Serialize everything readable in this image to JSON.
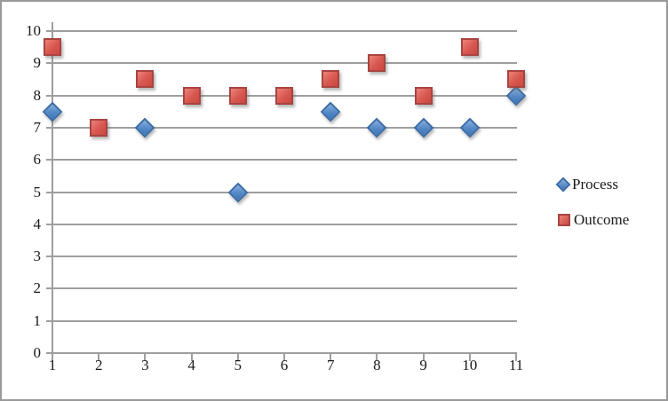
{
  "frame": {
    "background": "#ffffff",
    "border_color": "#999999"
  },
  "chart_data": {
    "type": "scatter",
    "title": "",
    "xlabel": "",
    "ylabel": "",
    "x": [
      1,
      2,
      3,
      4,
      5,
      6,
      7,
      8,
      9,
      10,
      11
    ],
    "series": [
      {
        "name": "Process",
        "marker": "diamond",
        "fill_color": "#5388c6",
        "border_color": "#3a6ba6",
        "values": [
          7.5,
          null,
          7,
          null,
          5,
          null,
          7.5,
          7,
          7,
          7,
          8
        ]
      },
      {
        "name": "Outcome",
        "marker": "square",
        "fill_color": "#d7564f",
        "border_color": "#a84440",
        "values": [
          9.5,
          7,
          8.5,
          8,
          8,
          8,
          8.5,
          9,
          8,
          9.5,
          8.5
        ]
      }
    ],
    "x_tick_labels": [
      "1",
      "2",
      "3",
      "4",
      "5",
      "6",
      "7",
      "8",
      "9",
      "10",
      "11"
    ],
    "y_tick_labels": [
      "0",
      "1",
      "2",
      "3",
      "4",
      "5",
      "6",
      "7",
      "8",
      "9",
      "10"
    ],
    "xlim": [
      1,
      11
    ],
    "ylim": [
      0,
      10
    ],
    "grid": "horizontal-major",
    "gridline_color": "#9e9e9e",
    "legend": {
      "position": "right",
      "items": [
        {
          "label": "Process",
          "marker": "diamond"
        },
        {
          "label": "Outcome",
          "marker": "square"
        }
      ]
    }
  }
}
